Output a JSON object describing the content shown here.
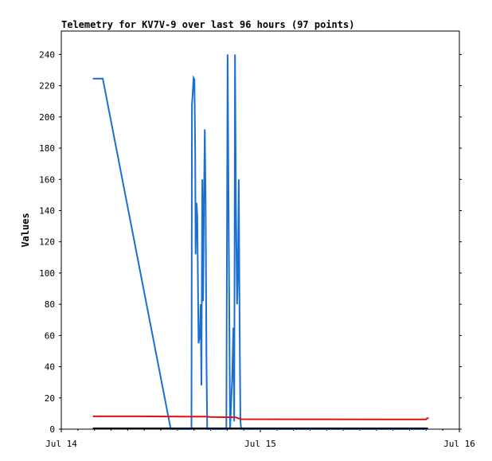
{
  "chart_data": {
    "type": "line",
    "title": "Telemetry for KV7V-9 over last 96 hours (97 points)",
    "xlabel": "",
    "ylabel": "Values",
    "x_unit": "hours",
    "xlim": [
      0,
      48
    ],
    "ylim": [
      0,
      255
    ],
    "x_ticks": [
      {
        "x": 0,
        "label": "Jul 14"
      },
      {
        "x": 24,
        "label": "Jul 15"
      },
      {
        "x": 48,
        "label": "Jul 16"
      }
    ],
    "y_ticks": [
      0,
      20,
      40,
      60,
      80,
      100,
      120,
      140,
      160,
      180,
      200,
      220,
      240
    ],
    "grid": false,
    "legend": "none",
    "series": [
      {
        "color": "#1a6fd1",
        "points": [
          [
            3.8,
            224.5
          ],
          [
            5.0,
            224.5
          ],
          [
            13.2,
            0
          ],
          [
            15.7,
            0
          ],
          [
            15.75,
            208
          ],
          [
            15.85,
            215
          ],
          [
            15.95,
            225
          ],
          [
            16.05,
            224
          ],
          [
            16.15,
            177
          ],
          [
            16.2,
            112
          ],
          [
            16.3,
            145
          ],
          [
            16.4,
            137
          ],
          [
            16.55,
            55
          ],
          [
            16.7,
            60
          ],
          [
            16.8,
            80
          ],
          [
            16.9,
            28
          ],
          [
            17.0,
            160
          ],
          [
            17.1,
            82
          ],
          [
            17.2,
            145
          ],
          [
            17.3,
            192
          ],
          [
            17.4,
            145
          ],
          [
            17.5,
            46
          ],
          [
            17.6,
            0
          ],
          [
            19.9,
            0
          ],
          [
            20.05,
            240
          ],
          [
            20.2,
            120
          ],
          [
            20.35,
            0
          ],
          [
            20.6,
            32
          ],
          [
            20.75,
            65
          ],
          [
            20.85,
            5
          ],
          [
            20.95,
            240
          ],
          [
            21.05,
            145
          ],
          [
            21.2,
            80
          ],
          [
            21.3,
            100
          ],
          [
            21.4,
            160
          ],
          [
            21.5,
            65
          ],
          [
            21.6,
            5
          ],
          [
            21.7,
            0
          ],
          [
            44.2,
            0
          ]
        ]
      },
      {
        "color": "#e01010",
        "points": [
          [
            3.8,
            8.2
          ],
          [
            9,
            8.2
          ],
          [
            15,
            8.0
          ],
          [
            17.5,
            8.0
          ],
          [
            18,
            7.8
          ],
          [
            21,
            7.6
          ],
          [
            21.7,
            6.4
          ],
          [
            30,
            6.3
          ],
          [
            40,
            6.2
          ],
          [
            44.0,
            6.2
          ],
          [
            44.1,
            7.0
          ],
          [
            44.3,
            7.0
          ]
        ]
      },
      {
        "color": "#000000",
        "points": [
          [
            3.8,
            0.5
          ],
          [
            44.2,
            0.5
          ]
        ]
      }
    ]
  }
}
